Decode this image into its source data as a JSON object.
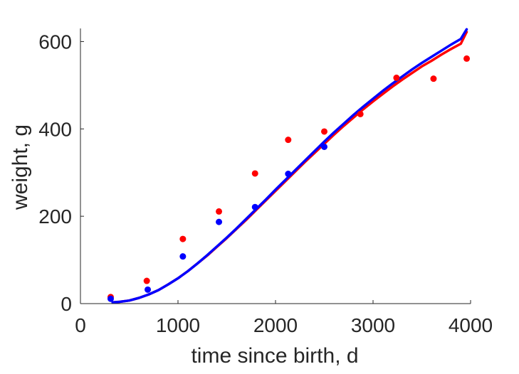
{
  "chart_data": {
    "type": "scatter",
    "title": "",
    "xlabel": "time since birth, d",
    "ylabel": "weight, g",
    "xlim": [
      0,
      4000
    ],
    "ylim": [
      0,
      630
    ],
    "xticks": [
      0,
      1000,
      2000,
      3000,
      4000
    ],
    "xtick_labels": [
      "0",
      "1000",
      "2000",
      "3000",
      "4000"
    ],
    "yticks": [
      0,
      200,
      400,
      600
    ],
    "ytick_labels": [
      "0",
      "200",
      "400",
      "600"
    ],
    "grid": false,
    "legend": "none",
    "series": [
      {
        "kind": "points",
        "color": "#ff0000",
        "x": [
          310,
          680,
          1050,
          1420,
          1790,
          2130,
          2500,
          2870,
          3240,
          3620,
          3960
        ],
        "y": [
          15,
          52,
          148,
          211,
          298,
          375,
          394,
          434,
          517,
          515,
          561
        ]
      },
      {
        "kind": "points",
        "color": "#0000ff",
        "x": [
          310,
          690,
          1050,
          1420,
          1790,
          2130,
          2500
        ],
        "y": [
          11,
          32,
          108,
          187,
          221,
          297,
          359
        ]
      },
      {
        "kind": "line",
        "color": "#ff0000",
        "x": [
          330,
          400,
          500,
          600,
          700,
          800,
          900,
          1000,
          1100,
          1200,
          1300,
          1400,
          1500,
          1600,
          1700,
          1800,
          1900,
          2000,
          2100,
          2200,
          2300,
          2400,
          2500,
          2600,
          2700,
          2800,
          2900,
          3000,
          3100,
          3200,
          3300,
          3400,
          3500,
          3600,
          3700,
          3800,
          3900,
          3960
        ],
        "y": [
          3,
          4,
          7,
          13,
          21,
          31,
          44,
          58,
          74,
          92,
          110,
          130,
          150,
          171,
          192,
          214,
          236,
          258,
          280,
          302,
          324,
          345,
          366,
          387,
          407,
          426,
          445,
          463,
          480,
          497,
          513,
          528,
          543,
          556,
          570,
          583,
          595,
          622
        ]
      },
      {
        "kind": "line",
        "color": "#0000ff",
        "x": [
          330,
          400,
          500,
          600,
          700,
          800,
          900,
          1000,
          1100,
          1200,
          1300,
          1400,
          1500,
          1600,
          1700,
          1800,
          1900,
          2000,
          2100,
          2200,
          2300,
          2400,
          2500,
          2600,
          2700,
          2800,
          2900,
          3000,
          3100,
          3200,
          3300,
          3400,
          3500,
          3600,
          3700,
          3800,
          3900,
          3960
        ],
        "y": [
          3,
          4,
          7,
          13,
          21,
          31,
          44,
          58,
          74,
          92,
          111,
          131,
          151,
          172,
          194,
          216,
          238,
          261,
          283,
          305,
          327,
          349,
          371,
          392,
          412,
          432,
          451,
          469,
          487,
          504,
          520,
          536,
          551,
          565,
          579,
          593,
          606,
          628
        ]
      }
    ]
  }
}
